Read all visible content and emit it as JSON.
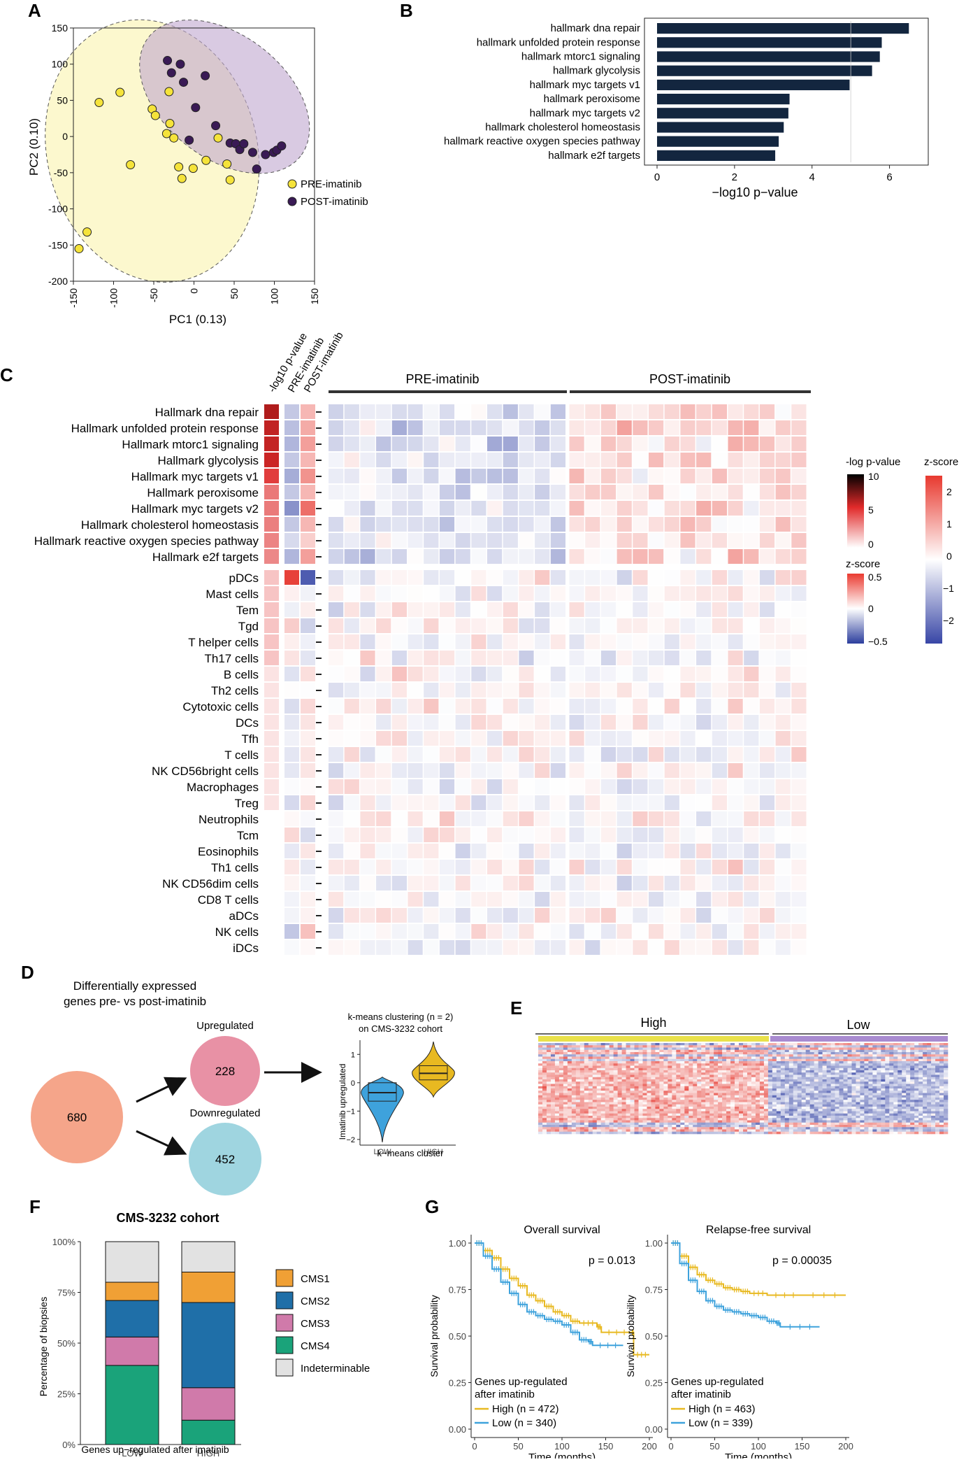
{
  "colors": {
    "pre": "#f5e33a",
    "post": "#3a1a55",
    "bar": "#13263f",
    "hm_red": "#e6382f",
    "hm_blue": "#3b4aa8",
    "cms1": "#f0a035",
    "cms2": "#1f6fa8",
    "cms3": "#d07aaa",
    "cms4": "#1aa37a",
    "indet": "#e2e2e2",
    "high": "#e8b921",
    "low": "#3ea2dc",
    "venn_total": "#f5a58a",
    "venn_up": "#e891a5",
    "venn_down": "#9fd5e0",
    "hi_bar": "#e9e14a",
    "lo_bar": "#a98bd0"
  },
  "panelA": {
    "label": "A",
    "xlabel": "PC1 (0.13)",
    "ylabel": "PC2 (0.10)",
    "legend": [
      {
        "name": "PRE-imatinib"
      },
      {
        "name": "POST-imatinib"
      }
    ],
    "chart_data": {
      "type": "scatter",
      "xlim": [
        -150,
        150
      ],
      "ylim": [
        -200,
        150
      ],
      "xticks": [
        "-150",
        "-100",
        "-50",
        "0",
        "50",
        "100",
        "150"
      ],
      "yticks": [
        "150",
        "100",
        "50",
        "0",
        "-50",
        "-100",
        "-150",
        "-200"
      ],
      "series": [
        {
          "name": "PRE-imatinib",
          "points": [
            [
              -143,
              -155
            ],
            [
              -133,
              -132
            ],
            [
              -118,
              47
            ],
            [
              -92,
              61
            ],
            [
              -79,
              -39
            ],
            [
              -52,
              38
            ],
            [
              -48,
              29
            ],
            [
              -34,
              4
            ],
            [
              -31,
              62
            ],
            [
              -30,
              18
            ],
            [
              -25,
              -2
            ],
            [
              -19,
              -42
            ],
            [
              -15,
              -58
            ],
            [
              -1,
              -44
            ],
            [
              15,
              -33
            ],
            [
              30,
              -2
            ],
            [
              41,
              -38
            ],
            [
              45,
              -60
            ]
          ],
          "color": "#f5e33a"
        },
        {
          "name": "POST-imatinib",
          "points": [
            [
              -33,
              105
            ],
            [
              -28,
              88
            ],
            [
              -17,
              100
            ],
            [
              -13,
              75
            ],
            [
              -6,
              -5
            ],
            [
              2,
              40
            ],
            [
              14,
              84
            ],
            [
              27,
              15
            ],
            [
              45,
              -9
            ],
            [
              52,
              -10
            ],
            [
              57,
              -18
            ],
            [
              62,
              -10
            ],
            [
              73,
              -22
            ],
            [
              78,
              -45
            ],
            [
              89,
              -25
            ],
            [
              99,
              -22
            ],
            [
              103,
              -19
            ],
            [
              109,
              -13
            ]
          ],
          "color": "#3a1a55"
        }
      ]
    }
  },
  "panelB": {
    "label": "B",
    "chart_data": {
      "type": "bar",
      "orientation": "horizontal",
      "xlabel": "−log10 p−value",
      "xlim": [
        0,
        7
      ],
      "xticks": [
        "0",
        "2",
        "4",
        "6"
      ],
      "categories": [
        "hallmark dna repair",
        "hallmark unfolded protein response",
        "hallmark mtorc1 signaling",
        "hallmark glycolysis",
        "hallmark myc targets v1",
        "hallmark peroxisome",
        "hallmark myc targets v2",
        "hallmark cholesterol homeostasis",
        "hallmark reactive oxygen species pathway",
        "hallmark e2f targets"
      ],
      "values": [
        6.5,
        5.8,
        5.75,
        5.55,
        4.97,
        3.42,
        3.39,
        3.27,
        3.14,
        3.05
      ]
    }
  },
  "panelC": {
    "label": "C",
    "col_headers": [
      "-log10 p-value",
      "PRE-imatinib",
      "POST-imatinib"
    ],
    "group_pre": "PRE-imatinib",
    "group_post": "POST-imatinib",
    "pathways": [
      "Hallmark dna repair",
      "Hallmark unfolded protein response",
      "Hallmark mtorc1 signaling",
      "Hallmark glycolysis",
      "Hallmark myc targets v1",
      "Hallmark peroxisome",
      "Hallmark myc targets v2",
      "Hallmark cholesterol homeostasis",
      "Hallmark reactive oxygen species pathway",
      "Hallmark e2f targets"
    ],
    "cells": [
      "pDCs",
      "Mast cells",
      "Tem",
      "Tgd",
      "T helper cells",
      "Th17 cells",
      "B cells",
      "Th2 cells",
      "Cytotoxic cells",
      "DCs",
      "Tfh",
      "T cells",
      "NK CD56bright cells",
      "Macrophages",
      "Treg",
      "Neutrophils",
      "Tcm",
      "Eosinophils",
      "Th1 cells",
      "NK CD56dim cells",
      "CD8 T cells",
      "aDCs",
      "NK cells",
      "iDCs"
    ],
    "pval_vals": [
      6.5,
      5.8,
      5.75,
      5.55,
      4.97,
      3.42,
      3.39,
      3.27,
      3.14,
      3.05
    ],
    "legend_p": {
      "title": "-log p-value",
      "ticks": [
        "10",
        "5",
        "0"
      ]
    },
    "legend_z1": {
      "title": "z-score",
      "ticks": [
        "0.5",
        "0",
        "−0.5"
      ]
    },
    "legend_z2": {
      "title": "z-score",
      "ticks": [
        "2",
        "1",
        "0",
        "−1",
        "−2"
      ]
    }
  },
  "panelD": {
    "label": "D",
    "title1": "Differentially expressed",
    "title2": "genes pre- vs post-imatinib",
    "total": "680",
    "up_label": "Upregulated",
    "up": "228",
    "down_label": "Downregulated",
    "down": "452",
    "violin": {
      "title1": "k-means clustering (n = 2)",
      "title2": "on CMS-3232 cohort",
      "ylabel": "Imatinib upregulated",
      "xlabel": "k−means cluster",
      "categories": [
        "LOW",
        "HIGH"
      ],
      "yticks": [
        "1",
        "0",
        "−1",
        "−2"
      ],
      "ylim": [
        -2.2,
        1.5
      ]
    }
  },
  "panelE": {
    "label": "E",
    "high": "High",
    "low": "Low"
  },
  "panelF": {
    "label": "F",
    "chart_data": {
      "type": "bar",
      "stacked": true,
      "title": "CMS-3232 cohort",
      "ylabel": "Percentage of biopsies",
      "xlabel": "Genes up−regulated after imatinib",
      "categories": [
        "LOW",
        "HIGH"
      ],
      "yticks": [
        "100%",
        "75%",
        "50%",
        "25%",
        "0%"
      ],
      "series": [
        {
          "name": "CMS4",
          "values": [
            39,
            12
          ]
        },
        {
          "name": "CMS3",
          "values": [
            14,
            16
          ]
        },
        {
          "name": "CMS2",
          "values": [
            18,
            42
          ]
        },
        {
          "name": "CMS1",
          "values": [
            9,
            15
          ]
        },
        {
          "name": "Indeterminable",
          "values": [
            20,
            15
          ]
        }
      ],
      "legend": [
        "CMS1",
        "CMS2",
        "CMS3",
        "CMS4",
        "Indeterminable"
      ]
    }
  },
  "panelG": {
    "label": "G",
    "chart_data": [
      {
        "type": "line",
        "title": "Overall survival",
        "p": "p = 0.013",
        "ylabel": "Survival probability",
        "xlabel": "Time (months)",
        "xlim": [
          0,
          200
        ],
        "ylim": [
          0,
          1
        ],
        "xticks": [
          "0",
          "50",
          "100",
          "150",
          "200"
        ],
        "yticks": [
          "1.00",
          "0.75",
          "0.50",
          "0.25",
          "0.00"
        ],
        "legend_title1": "Genes up-regulated",
        "legend_title2": "after imatinib",
        "legend": [
          "High (n = 472)",
          "Low (n = 340)"
        ],
        "series": [
          {
            "name": "High",
            "points": [
              [
                0,
                1
              ],
              [
                10,
                0.96
              ],
              [
                20,
                0.92
              ],
              [
                30,
                0.86
              ],
              [
                40,
                0.81
              ],
              [
                50,
                0.77
              ],
              [
                60,
                0.72
              ],
              [
                70,
                0.69
              ],
              [
                80,
                0.66
              ],
              [
                90,
                0.63
              ],
              [
                100,
                0.61
              ],
              [
                110,
                0.58
              ],
              [
                120,
                0.57
              ],
              [
                140,
                0.55
              ],
              [
                145,
                0.52
              ],
              [
                180,
                0.52
              ],
              [
                182,
                0.4
              ],
              [
                200,
                0.4
              ]
            ]
          },
          {
            "name": "Low",
            "points": [
              [
                0,
                1
              ],
              [
                10,
                0.93
              ],
              [
                20,
                0.86
              ],
              [
                30,
                0.79
              ],
              [
                40,
                0.73
              ],
              [
                50,
                0.67
              ],
              [
                60,
                0.63
              ],
              [
                70,
                0.61
              ],
              [
                80,
                0.59
              ],
              [
                90,
                0.58
              ],
              [
                100,
                0.56
              ],
              [
                110,
                0.52
              ],
              [
                120,
                0.48
              ],
              [
                130,
                0.47
              ],
              [
                135,
                0.45
              ],
              [
                170,
                0.45
              ]
            ]
          }
        ]
      },
      {
        "type": "line",
        "title": "Relapse-free survival",
        "p": "p = 0.00035",
        "ylabel": "Survival probability",
        "xlabel": "Time (months)",
        "xlim": [
          0,
          200
        ],
        "ylim": [
          0,
          1
        ],
        "xticks": [
          "0",
          "50",
          "100",
          "150",
          "200"
        ],
        "yticks": [
          "1.00",
          "0.75",
          "0.50",
          "0.25",
          "0.00"
        ],
        "legend_title1": "Genes up-regulated",
        "legend_title2": "after imatinib",
        "legend": [
          "High (n = 463)",
          "Low (n = 339)"
        ],
        "series": [
          {
            "name": "High",
            "points": [
              [
                0,
                1
              ],
              [
                10,
                0.93
              ],
              [
                20,
                0.87
              ],
              [
                30,
                0.83
              ],
              [
                40,
                0.8
              ],
              [
                50,
                0.78
              ],
              [
                60,
                0.76
              ],
              [
                70,
                0.75
              ],
              [
                80,
                0.74
              ],
              [
                90,
                0.73
              ],
              [
                110,
                0.72
              ],
              [
                150,
                0.72
              ],
              [
                200,
                0.72
              ]
            ]
          },
          {
            "name": "Low",
            "points": [
              [
                0,
                1
              ],
              [
                10,
                0.89
              ],
              [
                20,
                0.8
              ],
              [
                30,
                0.74
              ],
              [
                40,
                0.69
              ],
              [
                50,
                0.66
              ],
              [
                60,
                0.64
              ],
              [
                70,
                0.63
              ],
              [
                80,
                0.62
              ],
              [
                90,
                0.61
              ],
              [
                100,
                0.6
              ],
              [
                110,
                0.58
              ],
              [
                120,
                0.57
              ],
              [
                125,
                0.55
              ],
              [
                170,
                0.55
              ]
            ]
          }
        ]
      }
    ]
  }
}
